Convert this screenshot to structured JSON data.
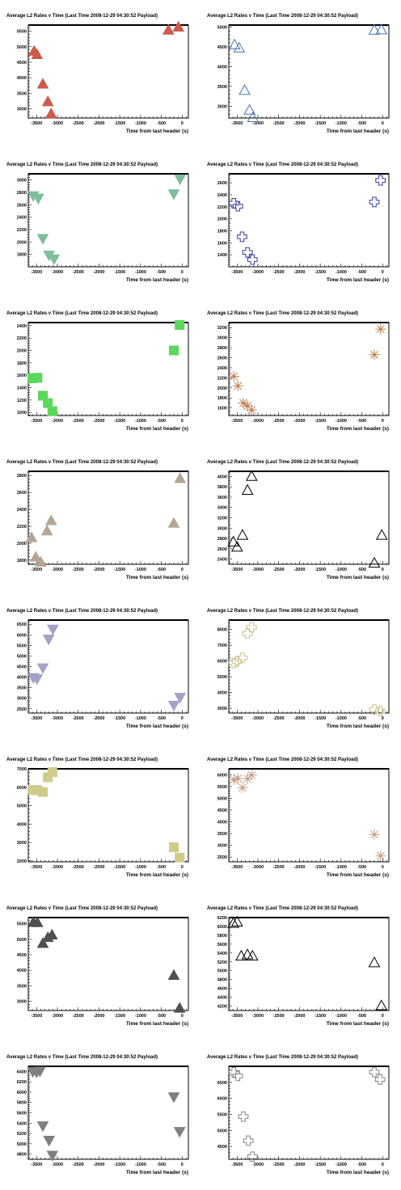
{
  "charts": [
    {
      "title": "Average L2 Rates v Time (Last Time 2008-12-29 04:30:52 Payload)",
      "xlabel": "Time from last header (s)",
      "ylim": [
        2700,
        5700
      ],
      "yticks": [
        3000,
        3500,
        4000,
        4500,
        5000,
        5500
      ],
      "marker": "triangle-up",
      "filled": true,
      "color": "#cc5a4d",
      "x": [
        -3560,
        -3490,
        -3350,
        -3230,
        -3150,
        -330,
        -90
      ],
      "y": [
        4870,
        4760,
        3810,
        3240,
        2850,
        5550,
        5650
      ]
    },
    {
      "title": "Average L2 Rates v Time (Last Time 2008-12-29 04:30:52 Payload)",
      "xlabel": "Time from last header (s)",
      "ylim": [
        2700,
        5050
      ],
      "yticks": [
        3000,
        3500,
        4000,
        4500,
        5000
      ],
      "marker": "triangle-up",
      "filled": false,
      "color": "#4e72b8",
      "x": [
        -3560,
        -3450,
        -3320,
        -3200,
        -3120,
        -200,
        -30
      ],
      "y": [
        4560,
        4480,
        3410,
        2910,
        2720,
        4930,
        4940
      ]
    },
    {
      "title": "Average L2 Rates v Time (Last Time 2008-12-29 04:30:52 Payload)",
      "xlabel": "Time from last header (s)",
      "ylim": [
        1600,
        3100
      ],
      "yticks": [
        1800,
        2000,
        2200,
        2400,
        2600,
        2800,
        3000
      ],
      "marker": "triangle-down",
      "filled": true,
      "color": "#7dbf9a",
      "x": [
        -3580,
        -3460,
        -3350,
        -3200,
        -3080,
        -200,
        -50
      ],
      "y": [
        2740,
        2700,
        2050,
        1780,
        1720,
        2770,
        3010
      ]
    },
    {
      "title": "Average L2 Rates v Time (Last Time 2008-12-29 04:30:52 Payload)",
      "xlabel": "Time from last header (s)",
      "ylim": [
        1200,
        2750
      ],
      "yticks": [
        1400,
        1600,
        1800,
        2000,
        2200,
        2400,
        2600
      ],
      "marker": "cross",
      "filled": false,
      "color": "#3a3aaa",
      "x": [
        -3580,
        -3480,
        -3380,
        -3250,
        -3130,
        -200,
        -50
      ],
      "y": [
        2260,
        2210,
        1700,
        1440,
        1320,
        2280,
        2640
      ]
    },
    {
      "title": "Average L2 Rates v Time (Last Time 2008-12-29 04:30:52 Payload)",
      "xlabel": "Time from last header (s)",
      "ylim": [
        950,
        2450
      ],
      "yticks": [
        1000,
        1200,
        1400,
        1600,
        1800,
        2000,
        2200,
        2400
      ],
      "marker": "square",
      "filled": true,
      "color": "#5cd65c",
      "x": [
        -3600,
        -3480,
        -3350,
        -3230,
        -3120,
        -200,
        -60
      ],
      "y": [
        1550,
        1560,
        1270,
        1150,
        1020,
        2000,
        2410
      ]
    },
    {
      "title": "Average L2 Rates v Time (Last Time 2008-12-29 04:30:52 Payload)",
      "xlabel": "Time from last header (s)",
      "ylim": [
        1450,
        3300
      ],
      "yticks": [
        1600,
        1800,
        2000,
        2200,
        2400,
        2600,
        2800,
        3000,
        3200
      ],
      "marker": "star",
      "filled": false,
      "color": "#c07a48",
      "x": [
        -3580,
        -3480,
        -3350,
        -3250,
        -3150,
        -200,
        -50
      ],
      "y": [
        2230,
        2040,
        1700,
        1640,
        1560,
        2660,
        3170
      ]
    },
    {
      "title": "Average L2 Rates v Time (Last Time 2008-12-29 04:30:52 Payload)",
      "xlabel": "Time from last header (s)",
      "ylim": [
        1750,
        2850
      ],
      "yticks": [
        1800,
        2000,
        2200,
        2400,
        2600,
        2800
      ],
      "marker": "triangle-up",
      "filled": true,
      "color": "#b5a594",
      "x": [
        -3620,
        -3520,
        -3400,
        -3250,
        -3150,
        -200,
        -50
      ],
      "y": [
        2070,
        1840,
        1780,
        2150,
        2270,
        2240,
        2770
      ]
    },
    {
      "title": "Average L2 Rates v Time (Last Time 2008-12-29 04:30:52 Payload)",
      "xlabel": "Time from last header (s)",
      "ylim": [
        2300,
        4100
      ],
      "yticks": [
        2400,
        2600,
        2800,
        3000,
        3200,
        3400,
        3600,
        3800,
        4000
      ],
      "marker": "triangle-up",
      "filled": false,
      "color": "#000000",
      "x": [
        -3590,
        -3500,
        -3370,
        -3250,
        -3150,
        -200,
        -20
      ],
      "y": [
        2740,
        2640,
        2870,
        3740,
        4010,
        2330,
        2870
      ]
    },
    {
      "title": "Average L2 Rates v Time (Last Time 2008-12-29 04:30:52 Payload)",
      "xlabel": "Time from last header (s)",
      "ylim": [
        2300,
        6700
      ],
      "yticks": [
        2500,
        3000,
        3500,
        4000,
        4500,
        5000,
        5500,
        6000,
        6500
      ],
      "marker": "triangle-down",
      "filled": true,
      "color": "#a3a3c8",
      "x": [
        -3580,
        -3490,
        -3350,
        -3210,
        -3110,
        -200,
        -50
      ],
      "y": [
        3960,
        3900,
        4420,
        5780,
        6250,
        2650,
        3020
      ]
    },
    {
      "title": "Average L2 Rates v Time (Last Time 2008-12-29 04:30:52 Payload)",
      "xlabel": "Time from last header (s)",
      "ylim": [
        2700,
        8600
      ],
      "yticks": [
        3000,
        4000,
        5000,
        6000,
        7000,
        8000
      ],
      "marker": "cross",
      "filled": false,
      "color": "#c8bd8a",
      "x": [
        -3580,
        -3500,
        -3370,
        -3250,
        -3150,
        -200,
        -60
      ],
      "y": [
        5880,
        5980,
        6200,
        7740,
        8140,
        2920,
        2820
      ]
    },
    {
      "title": "Average L2 Rates v Time (Last Time 2008-12-29 04:30:52 Payload)",
      "xlabel": "Time from last header (s)",
      "ylim": [
        1950,
        7000
      ],
      "yticks": [
        2000,
        3000,
        4000,
        5000,
        6000,
        7000
      ],
      "marker": "square",
      "filled": true,
      "color": "#d1cb8a",
      "x": [
        -3600,
        -3480,
        -3350,
        -3230,
        -3120,
        -200,
        -60
      ],
      "y": [
        5850,
        5840,
        5740,
        6540,
        6820,
        2740,
        2180
      ]
    },
    {
      "title": "Average L2 Rates v Time (Last Time 2008-12-29 04:30:52 Payload)",
      "xlabel": "Time from last header (s)",
      "ylim": [
        2300,
        6250
      ],
      "yticks": [
        2500,
        3000,
        3500,
        4000,
        4500,
        5000,
        5500,
        6000
      ],
      "marker": "star",
      "filled": false,
      "color": "#c09a82",
      "x": [
        -3580,
        -3480,
        -3370,
        -3250,
        -3150,
        -200,
        -50
      ],
      "y": [
        5790,
        5840,
        5450,
        5830,
        5990,
        3460,
        2550
      ]
    },
    {
      "title": "Average L2 Rates v Time (Last Time 2008-12-29 04:30:52 Payload)",
      "xlabel": "Time from last header (s)",
      "ylim": [
        2700,
        5700
      ],
      "yticks": [
        3000,
        3500,
        4000,
        4500,
        5000,
        5500
      ],
      "marker": "triangle-up",
      "filled": true,
      "color": "#505050",
      "x": [
        -3580,
        -3480,
        -3350,
        -3230,
        -3130,
        -200,
        -60
      ],
      "y": [
        5560,
        5550,
        4880,
        5070,
        5150,
        3850,
        2790
      ]
    },
    {
      "title": "Average L2 Rates v Time (Last Time 2008-12-29 04:30:52 Payload)",
      "xlabel": "Time from last header (s)",
      "ylim": [
        4100,
        6200
      ],
      "yticks": [
        4200,
        4400,
        4600,
        4800,
        5000,
        5200,
        5400,
        5600,
        5800,
        6000,
        6200
      ],
      "marker": "triangle-up",
      "filled": false,
      "color": "#000000",
      "x": [
        -3590,
        -3500,
        -3400,
        -3250,
        -3130,
        -200,
        -30
      ],
      "y": [
        6080,
        6110,
        5340,
        5370,
        5340,
        5190,
        4220
      ]
    },
    {
      "title": "Average L2 Rates v Time (Last Time 2008-12-29 04:30:52 Payload)",
      "xlabel": "Time from last header (s)",
      "ylim": [
        4700,
        6500
      ],
      "yticks": [
        4800,
        5000,
        5200,
        5400,
        5600,
        5800,
        6000,
        6200,
        6400
      ],
      "marker": "triangle-down",
      "filled": true,
      "color": "#7f7f7f",
      "x": [
        -3590,
        -3500,
        -3420,
        -3350,
        -3200,
        -3120,
        -200,
        -60
      ],
      "y": [
        6390,
        6380,
        6400,
        5340,
        5060,
        4770,
        5900,
        5230
      ]
    },
    {
      "title": "Average L2 Rates v Time (Last Time 2008-12-29 04:30:52 Payload)",
      "xlabel": "Time from last header (s)",
      "ylim": [
        4100,
        7000
      ],
      "yticks": [
        4500,
        5000,
        5500,
        6000,
        6500
      ],
      "marker": "cross",
      "filled": false,
      "color": "#858585",
      "x": [
        -3580,
        -3480,
        -3350,
        -3230,
        -3130,
        -200,
        -60
      ],
      "y": [
        6810,
        6700,
        5430,
        4680,
        4180,
        6820,
        6590
      ]
    }
  ],
  "chart_data": [
    {
      "type": "scatter",
      "title": "Average L2 Rates v Time (Last Time 2008-12-29 04:30:52 Payload)",
      "xlabel": "Time from last header (s)",
      "ylabel": "",
      "xlim": [
        -3700,
        150
      ],
      "ylim": [
        2700,
        5700
      ],
      "x": [
        -3560,
        -3490,
        -3350,
        -3230,
        -3150,
        -330,
        -90
      ],
      "y": [
        4870,
        4760,
        3810,
        3240,
        2850,
        5550,
        5650
      ]
    },
    {
      "type": "scatter",
      "title": "Average L2 Rates v Time (Last Time 2008-12-29 04:30:52 Payload)",
      "xlabel": "Time from last header (s)",
      "ylabel": "",
      "xlim": [
        -3700,
        150
      ],
      "ylim": [
        2700,
        5050
      ],
      "x": [
        -3560,
        -3450,
        -3320,
        -3200,
        -3120,
        -200,
        -30
      ],
      "y": [
        4560,
        4480,
        3410,
        2910,
        2720,
        4930,
        4940
      ]
    },
    {
      "type": "scatter",
      "title": "Average L2 Rates v Time (Last Time 2008-12-29 04:30:52 Payload)",
      "xlabel": "Time from last header (s)",
      "ylabel": "",
      "xlim": [
        -3700,
        150
      ],
      "ylim": [
        1600,
        3100
      ],
      "x": [
        -3580,
        -3460,
        -3350,
        -3200,
        -3080,
        -200,
        -50
      ],
      "y": [
        2740,
        2700,
        2050,
        1780,
        1720,
        2770,
        3010
      ]
    },
    {
      "type": "scatter",
      "title": "Average L2 Rates v Time (Last Time 2008-12-29 04:30:52 Payload)",
      "xlabel": "Time from last header (s)",
      "ylabel": "",
      "xlim": [
        -3700,
        150
      ],
      "ylim": [
        1200,
        2750
      ],
      "x": [
        -3580,
        -3480,
        -3380,
        -3250,
        -3130,
        -200,
        -50
      ],
      "y": [
        2260,
        2210,
        1700,
        1440,
        1320,
        2280,
        2640
      ]
    },
    {
      "type": "scatter",
      "title": "Average L2 Rates v Time (Last Time 2008-12-29 04:30:52 Payload)",
      "xlabel": "Time from last header (s)",
      "ylabel": "",
      "xlim": [
        -3700,
        150
      ],
      "ylim": [
        950,
        2450
      ],
      "x": [
        -3600,
        -3480,
        -3350,
        -3230,
        -3120,
        -200,
        -60
      ],
      "y": [
        1550,
        1560,
        1270,
        1150,
        1020,
        2000,
        2410
      ]
    },
    {
      "type": "scatter",
      "title": "Average L2 Rates v Time (Last Time 2008-12-29 04:30:52 Payload)",
      "xlabel": "Time from last header (s)",
      "ylabel": "",
      "xlim": [
        -3700,
        150
      ],
      "ylim": [
        1450,
        3300
      ],
      "x": [
        -3580,
        -3480,
        -3350,
        -3250,
        -3150,
        -200,
        -50
      ],
      "y": [
        2230,
        2040,
        1700,
        1640,
        1560,
        2660,
        3170
      ]
    },
    {
      "type": "scatter",
      "title": "Average L2 Rates v Time (Last Time 2008-12-29 04:30:52 Payload)",
      "xlabel": "Time from last header (s)",
      "ylabel": "",
      "xlim": [
        -3700,
        150
      ],
      "ylim": [
        1750,
        2850
      ],
      "x": [
        -3620,
        -3520,
        -3400,
        -3250,
        -3150,
        -200,
        -50
      ],
      "y": [
        2070,
        1840,
        1780,
        2150,
        2270,
        2240,
        2770
      ]
    },
    {
      "type": "scatter",
      "title": "Average L2 Rates v Time (Last Time 2008-12-29 04:30:52 Payload)",
      "xlabel": "Time from last header (s)",
      "ylabel": "",
      "xlim": [
        -3700,
        150
      ],
      "ylim": [
        2300,
        4100
      ],
      "x": [
        -3590,
        -3500,
        -3370,
        -3250,
        -3150,
        -200,
        -20
      ],
      "y": [
        2740,
        2640,
        2870,
        3740,
        4010,
        2330,
        2870
      ]
    },
    {
      "type": "scatter",
      "title": "Average L2 Rates v Time (Last Time 2008-12-29 04:30:52 Payload)",
      "xlabel": "Time from last header (s)",
      "ylabel": "",
      "xlim": [
        -3700,
        150
      ],
      "ylim": [
        2300,
        6700
      ],
      "x": [
        -3580,
        -3490,
        -3350,
        -3210,
        -3110,
        -200,
        -50
      ],
      "y": [
        3960,
        3900,
        4420,
        5780,
        6250,
        2650,
        3020
      ]
    },
    {
      "type": "scatter",
      "title": "Average L2 Rates v Time (Last Time 2008-12-29 04:30:52 Payload)",
      "xlabel": "Time from last header (s)",
      "ylabel": "",
      "xlim": [
        -3700,
        150
      ],
      "ylim": [
        2700,
        8600
      ],
      "x": [
        -3580,
        -3500,
        -3370,
        -3250,
        -3150,
        -200,
        -60
      ],
      "y": [
        5880,
        5980,
        6200,
        7740,
        8140,
        2920,
        2820
      ]
    },
    {
      "type": "scatter",
      "title": "Average L2 Rates v Time (Last Time 2008-12-29 04:30:52 Payload)",
      "xlabel": "Time from last header (s)",
      "ylabel": "",
      "xlim": [
        -3700,
        150
      ],
      "ylim": [
        1950,
        7000
      ],
      "x": [
        -3600,
        -3480,
        -3350,
        -3230,
        -3120,
        -200,
        -60
      ],
      "y": [
        5850,
        5840,
        5740,
        6540,
        6820,
        2740,
        2180
      ]
    },
    {
      "type": "scatter",
      "title": "Average L2 Rates v Time (Last Time 2008-12-29 04:30:52 Payload)",
      "xlabel": "Time from last header (s)",
      "ylabel": "",
      "xlim": [
        -3700,
        150
      ],
      "ylim": [
        2300,
        6250
      ],
      "x": [
        -3580,
        -3480,
        -3370,
        -3250,
        -3150,
        -200,
        -50
      ],
      "y": [
        5790,
        5840,
        5450,
        5830,
        5990,
        3460,
        2550
      ]
    },
    {
      "type": "scatter",
      "title": "Average L2 Rates v Time (Last Time 2008-12-29 04:30:52 Payload)",
      "xlabel": "Time from last header (s)",
      "ylabel": "",
      "xlim": [
        -3700,
        150
      ],
      "ylim": [
        2700,
        5700
      ],
      "x": [
        -3580,
        -3480,
        -3350,
        -3230,
        -3130,
        -200,
        -60
      ],
      "y": [
        5560,
        5550,
        4880,
        5070,
        5150,
        3850,
        2790
      ]
    },
    {
      "type": "scatter",
      "title": "Average L2 Rates v Time (Last Time 2008-12-29 04:30:52 Payload)",
      "xlabel": "Time from last header (s)",
      "ylabel": "",
      "xlim": [
        -3700,
        150
      ],
      "ylim": [
        4100,
        6200
      ],
      "x": [
        -3590,
        -3500,
        -3400,
        -3250,
        -3130,
        -200,
        -30
      ],
      "y": [
        6080,
        6110,
        5340,
        5370,
        5340,
        5190,
        4220
      ]
    },
    {
      "type": "scatter",
      "title": "Average L2 Rates v Time (Last Time 2008-12-29 04:30:52 Payload)",
      "xlabel": "Time from last header (s)",
      "ylabel": "",
      "xlim": [
        -3700,
        150
      ],
      "ylim": [
        4700,
        6500
      ],
      "x": [
        -3590,
        -3500,
        -3420,
        -3350,
        -3200,
        -3120,
        -200,
        -60
      ],
      "y": [
        6390,
        6380,
        6400,
        5340,
        5060,
        4770,
        5900,
        5230
      ]
    },
    {
      "type": "scatter",
      "title": "Average L2 Rates v Time (Last Time 2008-12-29 04:30:52 Payload)",
      "xlabel": "Time from last header (s)",
      "ylabel": "",
      "xlim": [
        -3700,
        150
      ],
      "ylim": [
        4100,
        7000
      ],
      "x": [
        -3580,
        -3480,
        -3350,
        -3230,
        -3130,
        -200,
        -60
      ],
      "y": [
        6810,
        6700,
        5430,
        4680,
        4180,
        6820,
        6590
      ]
    }
  ],
  "axes": {
    "xlim": [
      -3700,
      150
    ],
    "xticks": [
      -3500,
      -3000,
      -2500,
      -2000,
      -1500,
      -1000,
      -500,
      0
    ],
    "xtick_labels": [
      "-3500",
      "-3000",
      "-2500",
      "-2000",
      "-1500",
      "-1000",
      "-500",
      "0"
    ],
    "grid": false,
    "frame_color": "#000000"
  }
}
